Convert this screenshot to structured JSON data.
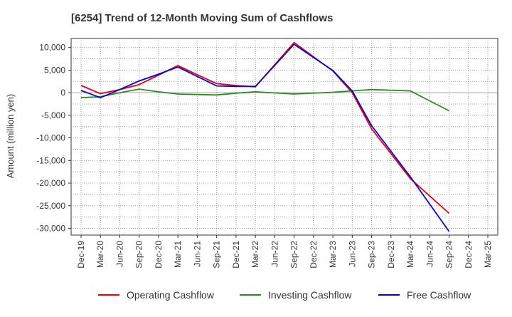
{
  "chart_data": {
    "type": "line",
    "title": "[6254]  Trend of 12-Month Moving Sum of Cashflows",
    "xlabel": "",
    "ylabel": "Amount (million yen)",
    "ylim": [
      -31500,
      12000
    ],
    "yticks": [
      10000,
      5000,
      0,
      -5000,
      -10000,
      -15000,
      -20000,
      -25000,
      -30000
    ],
    "ytick_labels": [
      "10,000",
      "5,000",
      "0",
      "-5,000",
      "-10,000",
      "-15,000",
      "-20,000",
      "-25,000",
      "-30,000"
    ],
    "categories": [
      "Dec-19",
      "Mar-20",
      "Jun-20",
      "Sep-20",
      "Dec-20",
      "Mar-21",
      "Jun-21",
      "Sep-21",
      "Dec-21",
      "Mar-22",
      "Jun-22",
      "Sep-22",
      "Dec-22",
      "Mar-23",
      "Jun-23",
      "Sep-23",
      "Dec-23",
      "Mar-24",
      "Jun-24",
      "Sep-24",
      "Dec-24",
      "Mar-25"
    ],
    "grid": true,
    "legend_position": "bottom",
    "series": [
      {
        "name": "Operating Cashflow",
        "color": "#e8000b",
        "values": [
          1600,
          -200,
          700,
          1800,
          3900,
          6000,
          4000,
          2000,
          1600,
          1300,
          null,
          11100,
          null,
          4800,
          0,
          -8000,
          null,
          -19000,
          null,
          -26700,
          null,
          null
        ]
      },
      {
        "name": "Investing Cashflow",
        "color": "#2e8b22",
        "values": [
          -1100,
          -900,
          0,
          800,
          200,
          -300,
          -400,
          -500,
          -100,
          200,
          null,
          -300,
          null,
          100,
          400,
          700,
          null,
          400,
          null,
          -4000,
          null,
          null
        ]
      },
      {
        "name": "Free Cashflow",
        "color": "#0a00d6",
        "values": [
          500,
          -1100,
          700,
          2600,
          4100,
          5700,
          3600,
          1500,
          1400,
          1400,
          null,
          10700,
          null,
          4900,
          400,
          -7300,
          null,
          -18600,
          null,
          -30700,
          null,
          null
        ]
      }
    ]
  }
}
